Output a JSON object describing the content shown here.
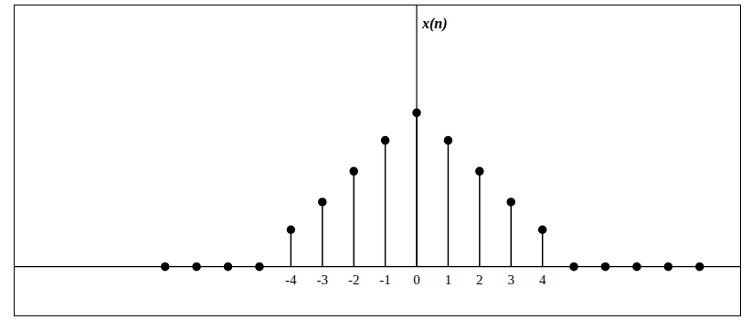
{
  "chart_data": {
    "type": "stem",
    "y_label": "x(n)",
    "x": [
      -8,
      -7,
      -6,
      -5,
      -4,
      -3,
      -2,
      -1,
      0,
      1,
      2,
      3,
      4,
      5,
      6,
      7,
      8,
      9
    ],
    "values": [
      0,
      0,
      0,
      0,
      1.2,
      2.1,
      3.1,
      4.1,
      5,
      4.1,
      3.1,
      2.1,
      1.2,
      0,
      0,
      0,
      0,
      0
    ],
    "xlim": [
      -12.8,
      10.3
    ],
    "ylim": [
      -1.6,
      8.5
    ],
    "xticks": [
      -4,
      -3,
      -2,
      -1,
      0,
      1,
      2,
      3,
      4
    ],
    "tick_labels": "x",
    "color": "#000000",
    "marker": "circle",
    "grid": false
  }
}
